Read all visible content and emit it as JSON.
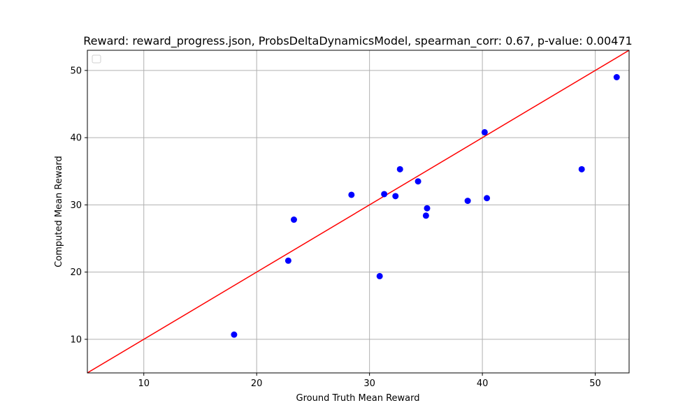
{
  "chart_data": {
    "type": "scatter",
    "title": "Reward: reward_progress.json, ProbsDeltaDynamicsModel, spearman_corr: 0.67, p-value: 0.00471",
    "xlabel": "Ground Truth Mean Reward",
    "ylabel": "Computed Mean Reward",
    "xlim": [
      5,
      53
    ],
    "ylim": [
      5,
      53
    ],
    "xticks": [
      10,
      20,
      30,
      40,
      50
    ],
    "yticks": [
      10,
      20,
      30,
      40,
      50
    ],
    "grid": true,
    "legend": "top-left (empty)",
    "series": [
      {
        "color": "#0000ff",
        "marker": "circle",
        "points": [
          {
            "x": 18.0,
            "y": 10.7
          },
          {
            "x": 22.8,
            "y": 21.7
          },
          {
            "x": 23.3,
            "y": 27.8
          },
          {
            "x": 28.4,
            "y": 31.5
          },
          {
            "x": 30.9,
            "y": 19.4
          },
          {
            "x": 31.3,
            "y": 31.6
          },
          {
            "x": 32.3,
            "y": 31.3
          },
          {
            "x": 32.7,
            "y": 35.3
          },
          {
            "x": 34.3,
            "y": 33.5
          },
          {
            "x": 35.0,
            "y": 28.4
          },
          {
            "x": 35.1,
            "y": 29.5
          },
          {
            "x": 38.7,
            "y": 30.6
          },
          {
            "x": 40.2,
            "y": 40.8
          },
          {
            "x": 40.4,
            "y": 31.0
          },
          {
            "x": 48.8,
            "y": 35.3
          },
          {
            "x": 51.9,
            "y": 49.0
          }
        ]
      }
    ],
    "reference_line": {
      "color": "#ff0000",
      "x": [
        5,
        53
      ],
      "y": [
        5,
        53
      ]
    }
  }
}
